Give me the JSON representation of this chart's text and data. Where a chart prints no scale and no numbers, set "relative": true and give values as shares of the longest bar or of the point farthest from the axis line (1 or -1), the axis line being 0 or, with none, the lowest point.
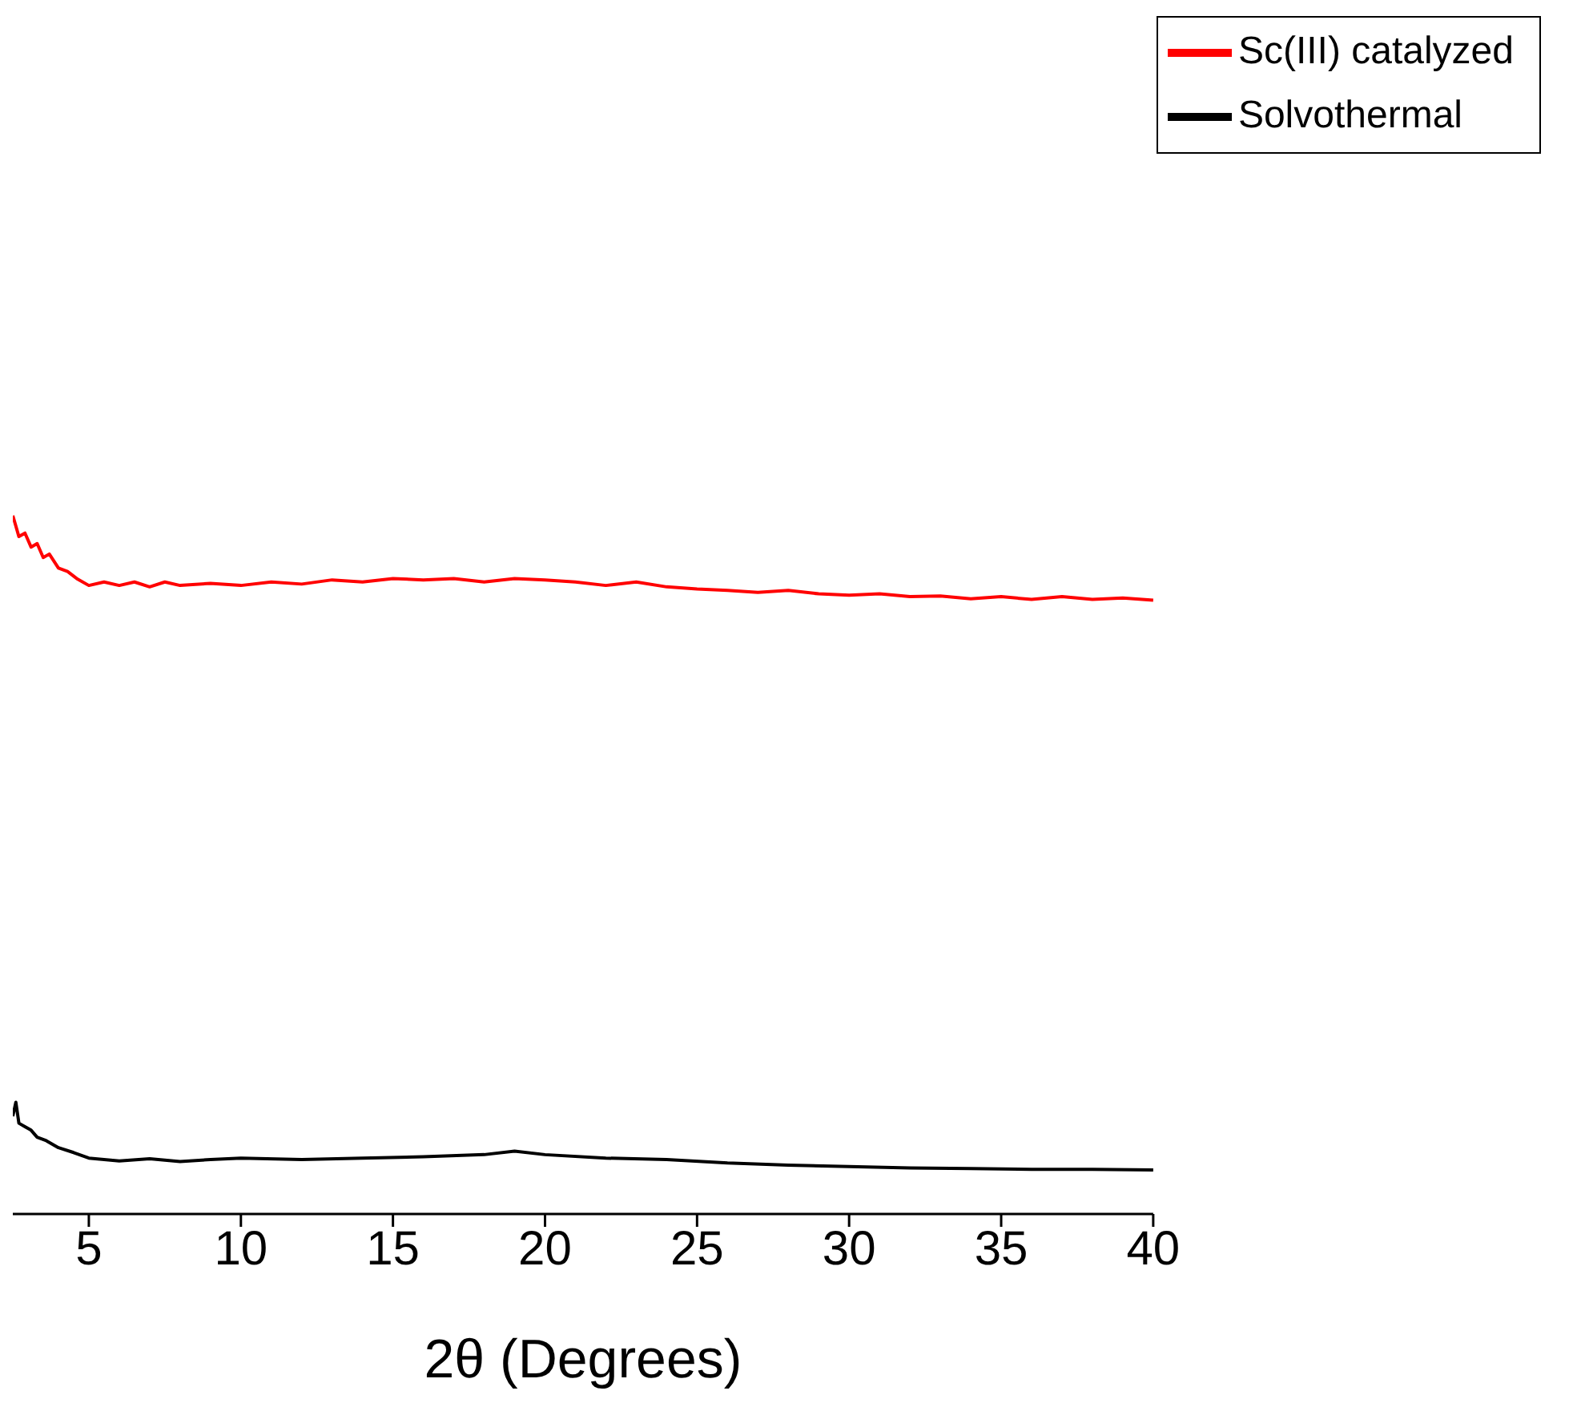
{
  "chart_data": {
    "type": "line",
    "relative": true,
    "xlabel": "2θ (Degrees)",
    "xlim": [
      2.5,
      40
    ],
    "xticks": [
      5,
      10,
      15,
      20,
      25,
      30,
      35,
      40
    ],
    "tick_labels": "x",
    "legend": "top right",
    "grid": false,
    "marker": "none",
    "line_style": "solid",
    "series": [
      {
        "name": "Sc(III) catalyzed",
        "color": "#ff0000",
        "x": [
          2.5,
          2.7,
          2.9,
          3.1,
          3.3,
          3.5,
          3.7,
          4.0,
          4.3,
          4.6,
          5.0,
          5.5,
          6,
          6.5,
          7,
          7.5,
          8,
          9,
          10,
          11,
          12,
          13,
          14,
          15,
          16,
          17,
          18,
          19,
          20,
          21,
          22,
          23,
          24,
          25,
          26,
          27,
          28,
          29,
          30,
          31,
          32,
          33,
          34,
          35,
          36,
          37,
          38,
          39,
          40
        ],
        "values": [
          1.0,
          0.97,
          0.975,
          0.955,
          0.96,
          0.94,
          0.945,
          0.925,
          0.92,
          0.91,
          0.9,
          0.905,
          0.9,
          0.905,
          0.898,
          0.905,
          0.9,
          0.903,
          0.9,
          0.905,
          0.902,
          0.908,
          0.905,
          0.91,
          0.908,
          0.91,
          0.905,
          0.91,
          0.908,
          0.905,
          0.9,
          0.905,
          0.898,
          0.895,
          0.893,
          0.89,
          0.893,
          0.888,
          0.886,
          0.888,
          0.884,
          0.885,
          0.881,
          0.884,
          0.88,
          0.884,
          0.88,
          0.882,
          0.879
        ]
      },
      {
        "name": "Solvothermal",
        "color": "#000000",
        "x": [
          2.5,
          2.6,
          2.7,
          2.9,
          3.1,
          3.3,
          3.6,
          4.0,
          4.5,
          5,
          6,
          7,
          8,
          9,
          10,
          12,
          14,
          16,
          18,
          19,
          20,
          22,
          24,
          26,
          28,
          30,
          32,
          34,
          36,
          38,
          40
        ],
        "values": [
          0.14,
          0.16,
          0.13,
          0.125,
          0.12,
          0.11,
          0.105,
          0.095,
          0.088,
          0.08,
          0.076,
          0.079,
          0.075,
          0.078,
          0.08,
          0.078,
          0.08,
          0.082,
          0.085,
          0.09,
          0.085,
          0.08,
          0.078,
          0.073,
          0.07,
          0.068,
          0.066,
          0.065,
          0.064,
          0.064,
          0.063
        ]
      }
    ]
  }
}
